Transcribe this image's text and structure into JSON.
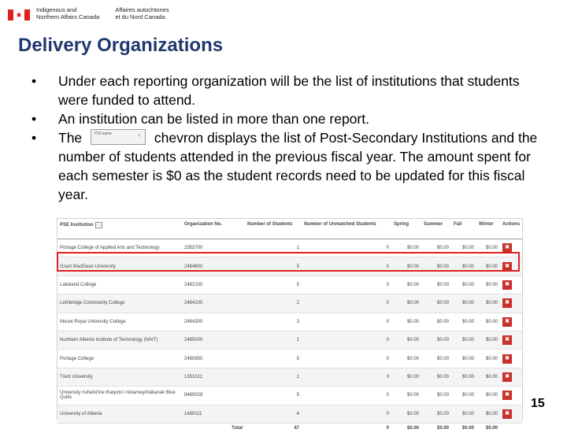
{
  "header": {
    "dept_en_line1": "Indigenous and",
    "dept_en_line2": "Northern Affairs Canada",
    "dept_fr_line1": "Affaires autochtones",
    "dept_fr_line2": "et du Nord Canada"
  },
  "slide": {
    "title": "Delivery Organizations",
    "bullets": [
      "Under each reporting organization will be the list of institutions that students were funded to attend.",
      "An institution can be listed in more than one report."
    ],
    "bullet3_before": "The",
    "bullet3_after": "chevron displays the list of Post-Secondary Institutions and the number of students attended in the previous fiscal year. The amount spent for each semester is $0 as the student records need to be updated for this fiscal year.",
    "chevron_text": "PSI name",
    "page_number": "15"
  },
  "table": {
    "headers": [
      "PSE Institution",
      "Organization No.",
      "Number of Students",
      "Number of Unmatched Students",
      "Spring",
      "Summer",
      "Fall",
      "Winter",
      "Actions"
    ],
    "rows": [
      [
        "Portage College of Applied Arts and Technology",
        "2353700",
        "1",
        "0",
        "$0.00",
        "$0.00",
        "$0.00",
        "$0.00"
      ],
      [
        "Grant MacEwan University",
        "2484800",
        "5",
        "0",
        "$0.00",
        "$0.00",
        "$0.00",
        "$0.00"
      ],
      [
        "Lakeland College",
        "2482100",
        "5",
        "0",
        "$0.00",
        "$0.00",
        "$0.00",
        "$0.00"
      ],
      [
        "Lethbridge Community College",
        "2484100",
        "2",
        "0",
        "$0.00",
        "$0.00",
        "$0.00",
        "$0.00"
      ],
      [
        "Mount Royal University College",
        "2484300",
        "3",
        "0",
        "$0.00",
        "$0.00",
        "$0.00",
        "$0.00"
      ],
      [
        "Northern Alberta Institute of Technology (NAIT)",
        "2485000",
        "1",
        "0",
        "$0.00",
        "$0.00",
        "$0.00",
        "$0.00"
      ],
      [
        "Portage College",
        "2480850",
        "5",
        "0",
        "$0.00",
        "$0.00",
        "$0.00",
        "$0.00"
      ],
      [
        "Trent University",
        "1351011",
        "1",
        "0",
        "$0.00",
        "$0.00",
        "$0.00",
        "$0.00"
      ],
      [
        "University nuhelot'ine thaiyots'i nistameyimâkanak Blue Quills",
        "9480028",
        "5",
        "0",
        "$0.00",
        "$0.00",
        "$0.00",
        "$0.00"
      ],
      [
        "University of Alberta",
        "1480111",
        "4",
        "0",
        "$0.00",
        "$0.00",
        "$0.00",
        "$0.00"
      ]
    ],
    "total": [
      "Total",
      "47",
      "0",
      "$0.00",
      "$0.00",
      "$0.00",
      "$0.00"
    ]
  }
}
